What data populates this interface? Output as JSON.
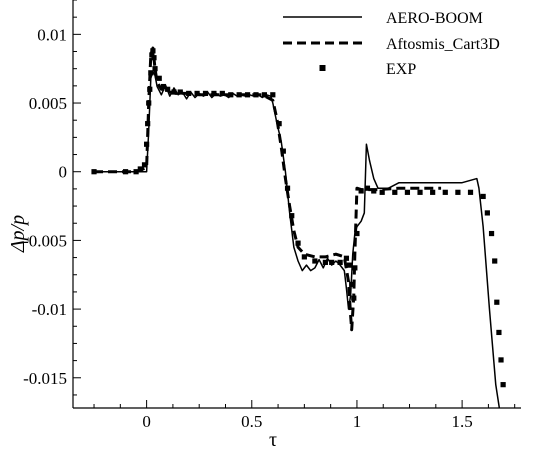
{
  "chart_data": {
    "type": "line",
    "xlabel": "τ",
    "ylabel": "Δp/p",
    "xlim": [
      -0.35,
      1.78
    ],
    "ylim": [
      -0.0172,
      0.0125
    ],
    "x_ticks": [
      0,
      0.5,
      1,
      1.5
    ],
    "x_tick_labels": [
      "0",
      "0.5",
      "1",
      "1.5"
    ],
    "y_ticks": [
      0.01,
      0.005,
      0,
      -0.005,
      -0.01,
      -0.015
    ],
    "y_tick_labels": [
      "0.01",
      "0.005",
      "0",
      "-0.005",
      "-0.01",
      "-0.015"
    ],
    "grid": false,
    "legend_position": "top-right",
    "series": [
      {
        "name": "AERO-BOOM",
        "style": "solid",
        "color": "#000000",
        "x": [
          -0.25,
          -0.1,
          0.0,
          0.01,
          0.02,
          0.03,
          0.04,
          0.05,
          0.07,
          0.09,
          0.11,
          0.13,
          0.15,
          0.17,
          0.19,
          0.21,
          0.23,
          0.25,
          0.27,
          0.29,
          0.31,
          0.33,
          0.35,
          0.37,
          0.39,
          0.41,
          0.43,
          0.45,
          0.47,
          0.49,
          0.51,
          0.53,
          0.55,
          0.57,
          0.59,
          0.6,
          0.62,
          0.64,
          0.66,
          0.68,
          0.7,
          0.72,
          0.74,
          0.76,
          0.78,
          0.8,
          0.82,
          0.84,
          0.86,
          0.88,
          0.9,
          0.92,
          0.94,
          0.95,
          0.96,
          0.97,
          0.98,
          0.99,
          1.0,
          1.01,
          1.02,
          1.03,
          1.035,
          1.045,
          1.06,
          1.08,
          1.1,
          1.15,
          1.2,
          1.3,
          1.4,
          1.5,
          1.57,
          1.58,
          1.6,
          1.63,
          1.66,
          1.69
        ],
        "y": [
          0.0,
          0.0,
          0.0,
          0.003,
          0.0068,
          0.0073,
          0.007,
          0.0062,
          0.0056,
          0.0063,
          0.0055,
          0.0061,
          0.0056,
          0.0058,
          0.0053,
          0.0058,
          0.0054,
          0.0057,
          0.0055,
          0.0058,
          0.0054,
          0.0057,
          0.0055,
          0.0056,
          0.0054,
          0.0057,
          0.0055,
          0.0056,
          0.0055,
          0.0056,
          0.0055,
          0.0056,
          0.0054,
          0.0056,
          0.0055,
          0.005,
          0.0035,
          0.0022,
          0.0,
          -0.003,
          -0.0055,
          -0.0065,
          -0.0072,
          -0.0068,
          -0.0072,
          -0.007,
          -0.0064,
          -0.007,
          -0.0063,
          -0.0068,
          -0.0065,
          -0.0068,
          -0.0072,
          -0.0085,
          -0.01,
          -0.009,
          -0.006,
          -0.0045,
          -0.004,
          -0.0038,
          -0.0036,
          -0.0032,
          -0.003,
          0.002,
          0.0008,
          -0.0005,
          -0.0012,
          -0.0012,
          -0.0008,
          -0.0008,
          -0.0008,
          -0.0008,
          -0.0005,
          -0.0012,
          -0.004,
          -0.01,
          -0.0155,
          -0.0185
        ]
      },
      {
        "name": "Aftosmis_Cart3D",
        "style": "dashed",
        "color": "#000000",
        "x": [
          -0.25,
          -0.05,
          0.0,
          0.01,
          0.02,
          0.03,
          0.04,
          0.05,
          0.07,
          0.09,
          0.11,
          0.14,
          0.17,
          0.2,
          0.25,
          0.3,
          0.35,
          0.4,
          0.45,
          0.5,
          0.55,
          0.6,
          0.62,
          0.64,
          0.66,
          0.68,
          0.7,
          0.72,
          0.75,
          0.8,
          0.85,
          0.9,
          0.94,
          0.96,
          0.97,
          0.975,
          0.985,
          0.99,
          1.0,
          1.02,
          1.05,
          1.1,
          1.2,
          1.3,
          1.4
        ],
        "y": [
          0.0,
          0.0,
          0.0003,
          0.005,
          0.0085,
          0.009,
          0.0075,
          0.0065,
          0.006,
          0.006,
          0.0058,
          0.0057,
          0.0057,
          0.0057,
          0.0056,
          0.0056,
          0.0056,
          0.0056,
          0.0056,
          0.0056,
          0.0056,
          0.0052,
          0.0038,
          0.0018,
          -0.0005,
          -0.0025,
          -0.0043,
          -0.0055,
          -0.006,
          -0.0062,
          -0.0062,
          -0.006,
          -0.0062,
          -0.008,
          -0.0105,
          -0.0115,
          -0.009,
          -0.006,
          -0.0012,
          -0.0013,
          -0.0013,
          -0.0013,
          -0.0012,
          -0.0012,
          -0.0012
        ]
      },
      {
        "name": "EXP",
        "style": "markers",
        "color": "#000000",
        "x": [
          -0.25,
          -0.1,
          -0.05,
          -0.03,
          -0.01,
          0.0,
          0.005,
          0.01,
          0.015,
          0.02,
          0.025,
          0.03,
          0.035,
          0.04,
          0.06,
          0.08,
          0.1,
          0.13,
          0.16,
          0.2,
          0.24,
          0.28,
          0.32,
          0.36,
          0.4,
          0.44,
          0.48,
          0.52,
          0.56,
          0.6,
          0.63,
          0.65,
          0.67,
          0.69,
          0.72,
          0.75,
          0.8,
          0.85,
          0.88,
          0.92,
          0.95,
          0.965,
          0.975,
          0.985,
          0.99,
          1.0,
          1.02,
          1.05,
          1.08,
          1.12,
          1.18,
          1.24,
          1.3,
          1.36,
          1.42,
          1.48,
          1.54,
          1.6,
          1.62,
          1.64,
          1.655,
          1.665,
          1.675,
          1.685,
          1.695
        ],
        "y": [
          0.0,
          0.0,
          0.0,
          0.0002,
          0.0005,
          0.002,
          0.0035,
          0.005,
          0.006,
          0.0072,
          0.0085,
          0.0088,
          0.0083,
          0.0075,
          0.0068,
          0.0062,
          0.006,
          0.0058,
          0.0058,
          0.0057,
          0.0057,
          0.0057,
          0.0057,
          0.0057,
          0.0056,
          0.0056,
          0.0056,
          0.0056,
          0.0056,
          0.0056,
          0.0035,
          0.0015,
          -0.0012,
          -0.0032,
          -0.0052,
          -0.0062,
          -0.0065,
          -0.0066,
          -0.0066,
          -0.0066,
          -0.0063,
          -0.0068,
          -0.0082,
          -0.0092,
          -0.007,
          -0.0045,
          -0.0014,
          -0.0012,
          -0.0014,
          -0.0015,
          -0.0015,
          -0.0015,
          -0.0015,
          -0.0015,
          -0.0015,
          -0.0015,
          -0.0015,
          -0.0018,
          -0.003,
          -0.0045,
          -0.0065,
          -0.0095,
          -0.0117,
          -0.0137,
          -0.0155
        ]
      }
    ]
  }
}
